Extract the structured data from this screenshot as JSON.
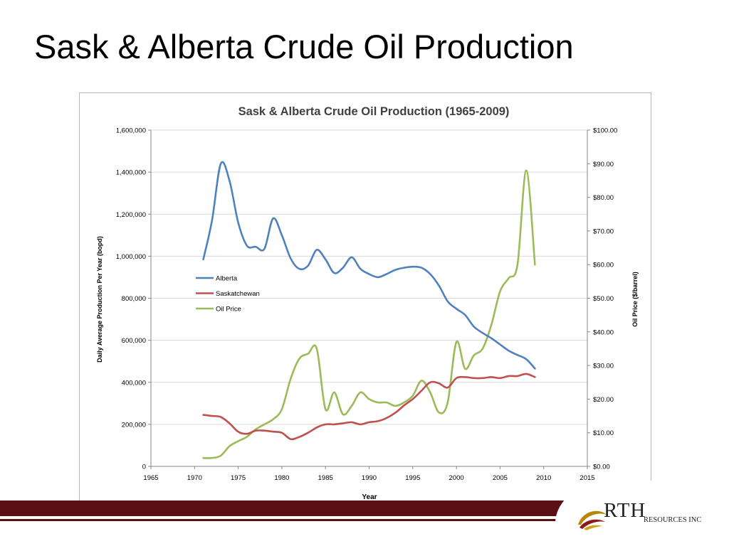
{
  "slide": {
    "title": "Sask & Alberta Crude Oil Production"
  },
  "logo": {
    "name_visible": "RTH",
    "subtitle": "RESOURCES INC"
  },
  "colors": {
    "alberta": "#4f81bd",
    "saskatchewan": "#c0504d",
    "oil_price": "#9bbb59",
    "footer": "#5a0f14",
    "axis": "#868686",
    "gridline": "#d9d9d9"
  },
  "chart_data": {
    "type": "line",
    "title": "Sask & Alberta Crude Oil Production (1965-2009)",
    "xlabel": "Year",
    "ylabel": "Daily Average Production Per Year (bopd)",
    "y2label": "Oil Price ($/barrel)",
    "xlim": [
      1965,
      2015
    ],
    "ylim": [
      0,
      1600000
    ],
    "y2lim": [
      0,
      100
    ],
    "x_ticks": [
      "1965",
      "1970",
      "1975",
      "1980",
      "1985",
      "1990",
      "1995",
      "2000",
      "2005",
      "2010",
      "2015"
    ],
    "y_ticks": [
      "0",
      "200,000",
      "400,000",
      "600,000",
      "800,000",
      "1,000,000",
      "1,200,000",
      "1,400,000",
      "1,600,000"
    ],
    "y2_ticks": [
      "$0.00",
      "$10.00",
      "$20.00",
      "$30.00",
      "$40.00",
      "$50.00",
      "$60.00",
      "$70.00",
      "$80.00",
      "$90.00",
      "$100.00"
    ],
    "grid": "horizontal",
    "legend_position": "left-middle",
    "x": [
      1971,
      1972,
      1973,
      1974,
      1975,
      1976,
      1977,
      1978,
      1979,
      1980,
      1981,
      1982,
      1983,
      1984,
      1985,
      1986,
      1987,
      1988,
      1989,
      1990,
      1991,
      1992,
      1993,
      1994,
      1995,
      1996,
      1997,
      1998,
      1999,
      2000,
      2001,
      2002,
      2003,
      2004,
      2005,
      2006,
      2007,
      2008,
      2009
    ],
    "series": [
      {
        "name": "Alberta",
        "axis": "left",
        "values": [
          985000,
          1170000,
          1440000,
          1360000,
          1160000,
          1050000,
          1045000,
          1035000,
          1180000,
          1100000,
          990000,
          940000,
          955000,
          1030000,
          985000,
          920000,
          945000,
          995000,
          940000,
          915000,
          900000,
          915000,
          935000,
          945000,
          950000,
          945000,
          915000,
          860000,
          785000,
          750000,
          720000,
          665000,
          635000,
          610000,
          580000,
          550000,
          530000,
          510000,
          465000
        ]
      },
      {
        "name": "Saskatchewan",
        "axis": "left",
        "values": [
          245000,
          240000,
          235000,
          205000,
          165000,
          155000,
          170000,
          170000,
          165000,
          160000,
          130000,
          140000,
          160000,
          185000,
          200000,
          200000,
          205000,
          210000,
          200000,
          210000,
          215000,
          230000,
          255000,
          290000,
          320000,
          360000,
          400000,
          395000,
          375000,
          420000,
          425000,
          420000,
          420000,
          425000,
          420000,
          430000,
          430000,
          440000,
          425000
        ]
      },
      {
        "name": "Oil Price",
        "axis": "right",
        "values": [
          2.5,
          2.5,
          3.2,
          6.0,
          7.5,
          8.8,
          11.0,
          12.5,
          14.0,
          17.0,
          26.0,
          32.0,
          33.5,
          35.0,
          17.0,
          22.0,
          15.5,
          18.0,
          22.0,
          20.0,
          19.0,
          19.0,
          18.0,
          19.0,
          21.0,
          25.5,
          22.0,
          16.0,
          19.0,
          37.0,
          29.0,
          33.0,
          35.0,
          42.0,
          52.0,
          56.0,
          60.0,
          88.0,
          60.0
        ]
      }
    ]
  }
}
